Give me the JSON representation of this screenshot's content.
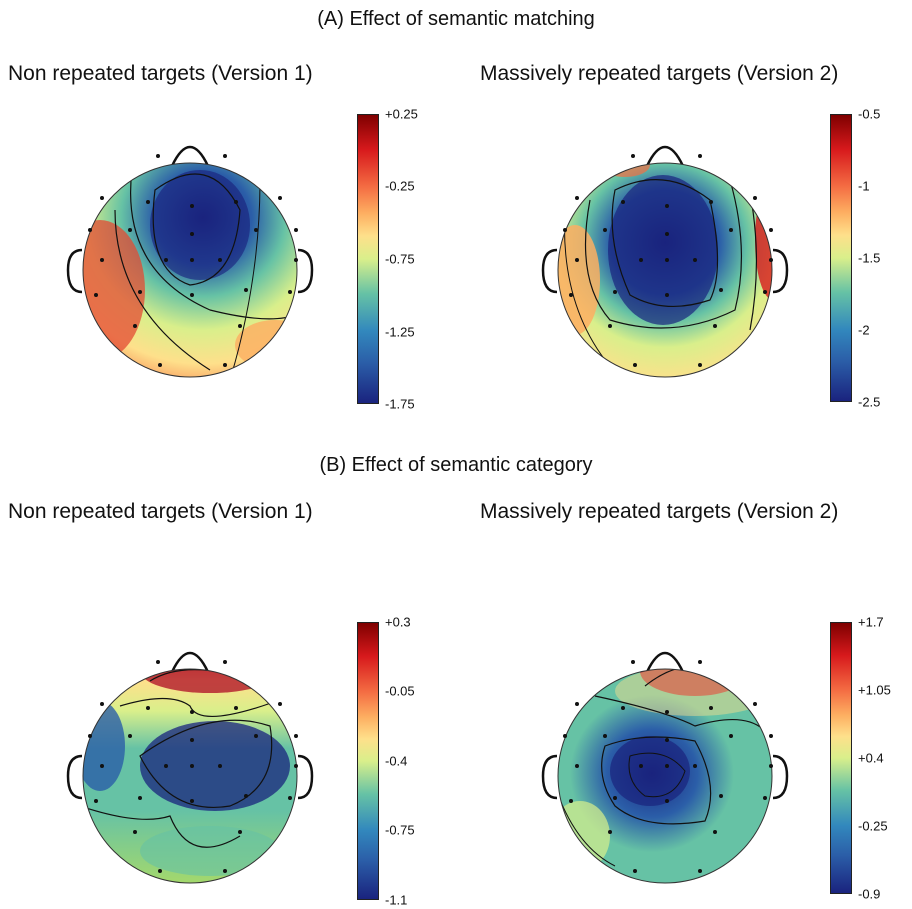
{
  "section_a": {
    "title": "(A) Effect of semantic matching"
  },
  "section_b": {
    "title": "(B) Effect of semantic category"
  },
  "panels": [
    {
      "title": "Non repeated targets (Version 1)",
      "ticks": [
        "+0.25",
        "-0.25",
        "-0.75",
        "-1.25",
        "-1.75"
      ]
    },
    {
      "title": "Massively repeated targets (Version 2)",
      "ticks": [
        "-0.5",
        "-1",
        "-1.5",
        "-2",
        "-2.5"
      ]
    },
    {
      "title": "Non repeated targets (Version 1)",
      "ticks": [
        "+0.3",
        "-0.05",
        "-0.4",
        "-0.75",
        "-1.1"
      ]
    },
    {
      "title": "Massively repeated targets (Version 2)",
      "ticks": [
        "+1.7",
        "+1.05",
        "+0.4",
        "-0.25",
        "-0.9"
      ]
    }
  ],
  "colors": {
    "low": "#1a237e",
    "mid": "#d9ef8b",
    "high": "#7f0000"
  }
}
